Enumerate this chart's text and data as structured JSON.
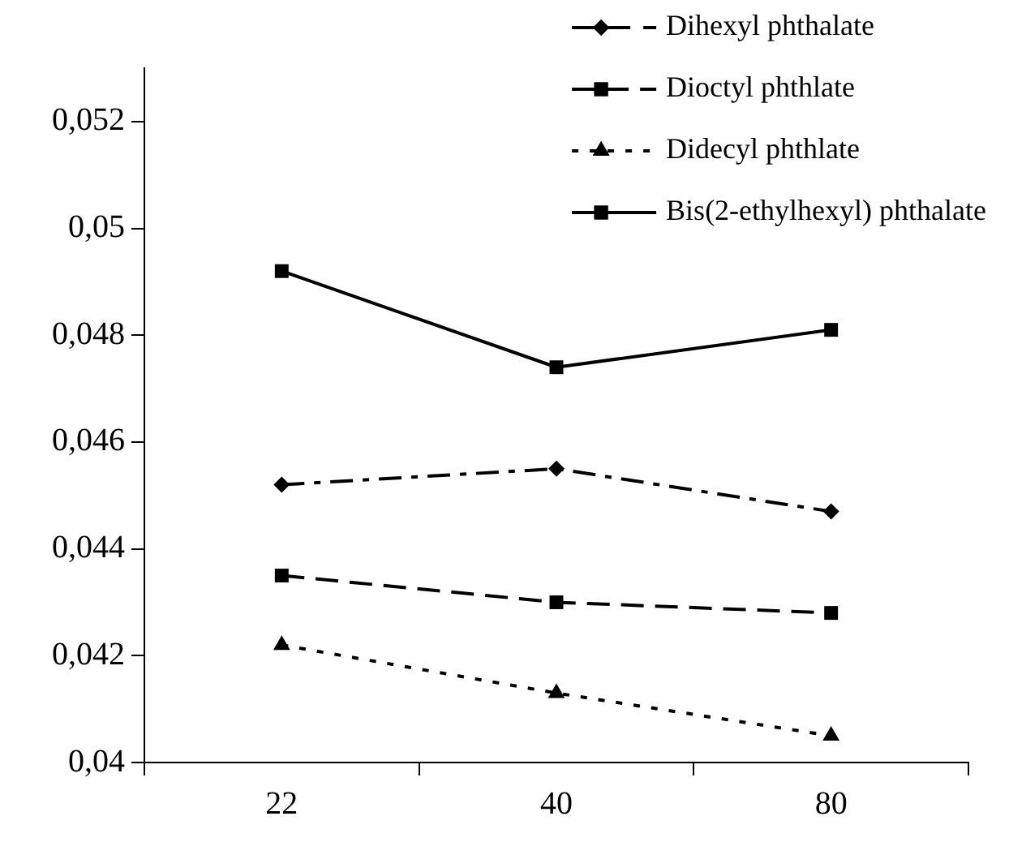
{
  "chart_data": {
    "type": "line",
    "categories": [
      "22",
      "40",
      "80"
    ],
    "series": [
      {
        "name": "Dihexyl phthalate",
        "color": "#000000",
        "marker": "diamond",
        "line_style": "dashdot",
        "values": [
          0.0452,
          0.0455,
          0.0447
        ]
      },
      {
        "name": "Dioctyl phthlate",
        "color": "#000000",
        "marker": "square",
        "line_style": "dashed",
        "values": [
          0.0435,
          0.043,
          0.0428
        ]
      },
      {
        "name": "Didecyl phthlate",
        "color": "#000000",
        "marker": "triangle",
        "line_style": "dotted",
        "values": [
          0.0422,
          0.0413,
          0.0405
        ]
      },
      {
        "name": "Bis(2-ethylhexyl) phthalate",
        "color": "#000000",
        "marker": "square",
        "line_style": "solid",
        "values": [
          0.0492,
          0.0474,
          0.0481
        ]
      }
    ],
    "ylim": [
      0.04,
      0.053
    ],
    "yticks": [
      {
        "value": 0.04,
        "label": "0,04"
      },
      {
        "value": 0.042,
        "label": "0,042"
      },
      {
        "value": 0.044,
        "label": "0,044"
      },
      {
        "value": 0.046,
        "label": "0,046"
      },
      {
        "value": 0.048,
        "label": "0,048"
      },
      {
        "value": 0.05,
        "label": "0,05"
      },
      {
        "value": 0.052,
        "label": "0,052"
      }
    ],
    "grid": false,
    "legend": "top right"
  }
}
